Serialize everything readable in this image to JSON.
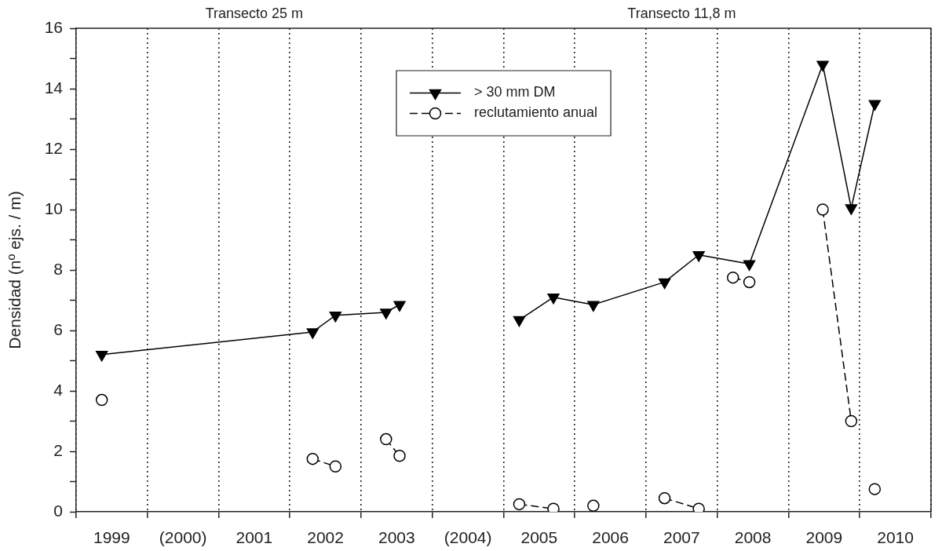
{
  "chart_data": {
    "type": "line",
    "ylabel": "Densidad (nº ejs. / m)",
    "annotations": [
      "Transecto 25 m",
      "Transecto 11,8 m"
    ],
    "xlim": [
      1999,
      2011
    ],
    "xticks": [
      {
        "value": 1999,
        "label": null
      },
      {
        "value": 1999.5,
        "label": "1999"
      },
      {
        "value": 2000,
        "label": null
      },
      {
        "value": 2000.5,
        "label": "(2000)"
      },
      {
        "value": 2001,
        "label": null
      },
      {
        "value": 2001.5,
        "label": "2001"
      },
      {
        "value": 2002,
        "label": null
      },
      {
        "value": 2002.5,
        "label": "2002"
      },
      {
        "value": 2003,
        "label": null
      },
      {
        "value": 2003.5,
        "label": "2003"
      },
      {
        "value": 2004,
        "label": null
      },
      {
        "value": 2004.5,
        "label": "(2004)"
      },
      {
        "value": 2005,
        "label": null
      },
      {
        "value": 2005.5,
        "label": "2005"
      },
      {
        "value": 2006,
        "label": null
      },
      {
        "value": 2006.5,
        "label": "2006"
      },
      {
        "value": 2007,
        "label": null
      },
      {
        "value": 2007.5,
        "label": "2007"
      },
      {
        "value": 2008,
        "label": null
      },
      {
        "value": 2008.5,
        "label": "2008"
      },
      {
        "value": 2009,
        "label": null
      },
      {
        "value": 2009.5,
        "label": "2009"
      },
      {
        "value": 2010,
        "label": null
      },
      {
        "value": 2010.5,
        "label": "2010"
      },
      {
        "value": 2011,
        "label": null
      }
    ],
    "ylim": [
      0,
      16
    ],
    "yticks": [
      0,
      {
        "value": 1,
        "label": null
      },
      2,
      {
        "value": 3,
        "label": null
      },
      4,
      {
        "value": 5,
        "label": null
      },
      6,
      {
        "value": 7,
        "label": null
      },
      8,
      {
        "value": 9,
        "label": null
      },
      10,
      {
        "value": 11,
        "label": null
      },
      12,
      {
        "value": 13,
        "label": null
      },
      14,
      {
        "value": 15,
        "label": null
      },
      16
    ],
    "grid": "x",
    "legend": "top",
    "series": [
      {
        "name": "> 30 mm DM",
        "color": "#000000",
        "marker": "triangle",
        "line_style": "solid",
        "x": [
          1999.36,
          2002.32,
          2002.64,
          2003.35,
          2003.54,
          2004,
          2005.22,
          2005.7,
          2006.26,
          2007.26,
          2007.74,
          2008.45,
          2009.48,
          2009.88,
          2010.21
        ],
        "values": [
          5.2,
          5.95,
          6.5,
          6.6,
          6.85,
          null,
          6.35,
          7.1,
          6.85,
          7.6,
          8.5,
          8.2,
          14.8,
          10.05,
          13.5
        ]
      },
      {
        "name": "reclutamiento anual",
        "color": "#000000",
        "marker": "circle",
        "line_style": "dashed",
        "x": [
          1999.36,
          2000,
          2002.32,
          2002.64,
          2003,
          2003.35,
          2003.54,
          2004,
          2005.22,
          2005.7,
          2006,
          2006.26,
          2007,
          2007.26,
          2007.74,
          2008,
          2008.22,
          2008.45,
          2009,
          2009.48,
          2009.88,
          2010,
          2010.21
        ],
        "values": [
          3.7,
          null,
          1.75,
          1.5,
          null,
          2.4,
          1.85,
          null,
          0.25,
          0.1,
          null,
          0.2,
          null,
          0.45,
          0.1,
          null,
          7.75,
          7.6,
          null,
          10,
          3,
          null,
          0.75
        ]
      }
    ]
  }
}
